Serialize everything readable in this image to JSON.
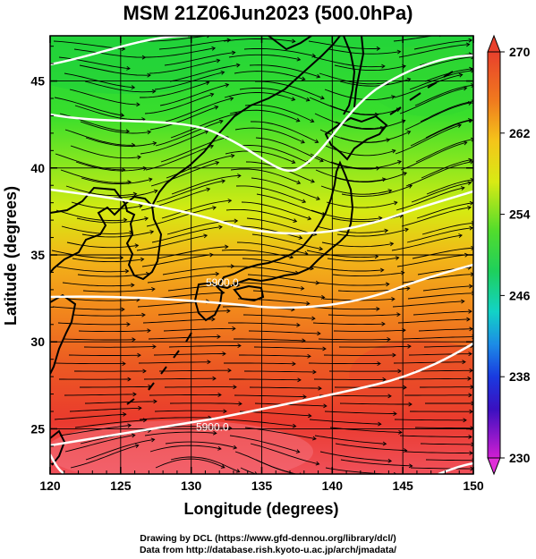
{
  "figure": {
    "title": "MSM 21Z06Jun2023 (500.0hPa)",
    "footer_line1": "Drawing by DCL (https://www.gfd-dennou.org/library/dcl/)",
    "footer_line2": "Data from http://database.rish.kyoto-u.ac.jp/arch/jmadata/"
  },
  "map": {
    "xlabel": "Longitude (degrees)",
    "ylabel": "Latitude  (degrees)",
    "lon_range": [
      120,
      150
    ],
    "lat_range": [
      22.4,
      47.6
    ],
    "lon_ticks": [
      "120",
      "125",
      "130",
      "135",
      "140",
      "145",
      "150"
    ],
    "lat_ticks": [
      "25",
      "30",
      "35",
      "40",
      "45"
    ],
    "contour_labels": [
      {
        "text": "5900.0",
        "lon": 132.2,
        "lat": 33.2
      },
      {
        "text": "5900.0",
        "lon": 131.5,
        "lat": 24.9
      }
    ]
  },
  "colorbar": {
    "range": [
      230,
      270
    ],
    "labels": [
      "270",
      "262",
      "254",
      "246",
      "238",
      "230"
    ]
  },
  "colors": {
    "land_outline": "#000000",
    "contour": "#ffffff",
    "streamline": "#000000"
  }
}
